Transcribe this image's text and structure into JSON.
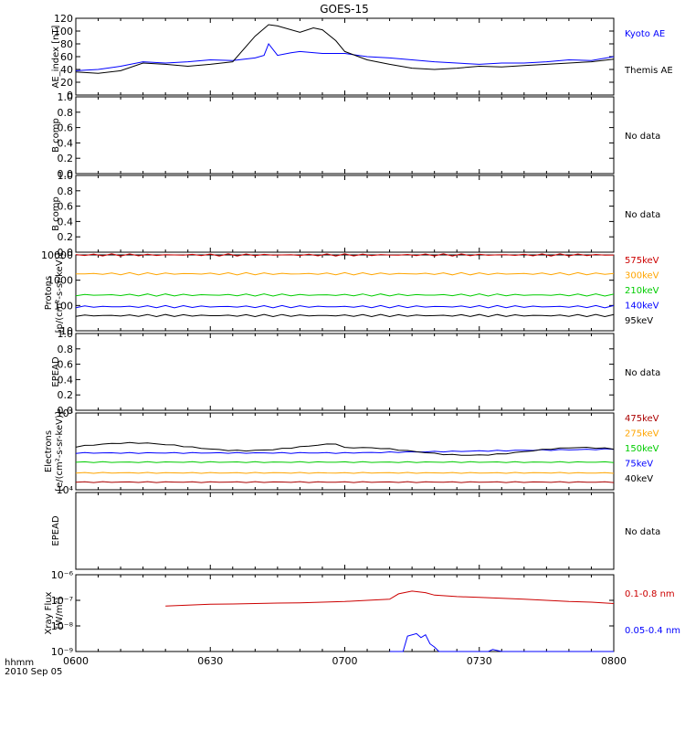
{
  "title": "GOES-15",
  "footer": {
    "time_label": "hhmm",
    "date_label": "2010 Sep 05"
  },
  "colors": {
    "black": "#000000",
    "blue": "#0000ff",
    "red": "#cc0000",
    "orange": "#ffa500",
    "green": "#00cc00",
    "darkred": "#aa0000"
  },
  "chart_data": [
    {
      "type": "line",
      "panel": "ae",
      "ylabel": "AE_index [nT]",
      "ylim": [
        0,
        120
      ],
      "yticks": [
        "0",
        "20",
        "40",
        "60",
        "80",
        "100",
        "120"
      ],
      "x_range": [
        "06:00",
        "08:00"
      ],
      "series": [
        {
          "name": "Kyoto AE",
          "color": "#0000ff",
          "x_min": [
            0,
            5,
            10,
            15,
            20,
            25,
            30,
            35,
            40,
            42,
            43,
            45,
            48,
            50,
            55,
            60,
            65,
            70,
            75,
            80,
            85,
            90,
            95,
            100,
            105,
            110,
            115,
            120
          ],
          "values": [
            38,
            40,
            45,
            52,
            50,
            52,
            55,
            54,
            58,
            62,
            80,
            62,
            66,
            68,
            65,
            65,
            60,
            58,
            55,
            52,
            50,
            48,
            50,
            50,
            52,
            55,
            54,
            60
          ]
        },
        {
          "name": "Themis AE",
          "color": "#000000",
          "x_min": [
            0,
            5,
            10,
            15,
            20,
            25,
            30,
            35,
            40,
            43,
            45,
            50,
            53,
            55,
            58,
            60,
            65,
            70,
            75,
            80,
            85,
            90,
            95,
            100,
            105,
            110,
            115,
            120
          ],
          "values": [
            36,
            34,
            38,
            50,
            48,
            45,
            48,
            52,
            92,
            110,
            108,
            98,
            105,
            102,
            85,
            68,
            55,
            48,
            42,
            40,
            42,
            45,
            44,
            46,
            48,
            50,
            52,
            56
          ]
        }
      ]
    },
    {
      "type": "line",
      "panel": "b1",
      "ylabel": "B comp",
      "ylim": [
        0,
        1
      ],
      "yticks": [
        "0.0",
        "0.2",
        "0.4",
        "0.6",
        "0.8",
        "1.0"
      ],
      "status": "No data",
      "series": []
    },
    {
      "type": "line",
      "panel": "b2",
      "ylabel": "B comp",
      "ylim": [
        0,
        1
      ],
      "yticks": [
        "0.0",
        "0.2",
        "0.4",
        "0.6",
        "0.8",
        "1.0"
      ],
      "status": "No data",
      "series": []
    },
    {
      "type": "line",
      "panel": "protons",
      "ylabel": "Protons",
      "ylabel2": "[p/(cm²-s-sr-keV)]",
      "scale": "log",
      "ylim": [
        10,
        10000
      ],
      "yticks": [
        "10",
        "100",
        "1000",
        "10000"
      ],
      "series": [
        {
          "name": "575keV",
          "color": "#cc0000",
          "level": 10000
        },
        {
          "name": "300keV",
          "color": "#ffa500",
          "level": 1800
        },
        {
          "name": "210keV",
          "color": "#00cc00",
          "level": 260
        },
        {
          "name": "140keV",
          "color": "#0000ff",
          "level": 90
        },
        {
          "name": "95keV",
          "color": "#000000",
          "level": 40
        }
      ]
    },
    {
      "type": "line",
      "panel": "epead1",
      "ylabel": "EPEAD",
      "ylim": [
        0,
        1
      ],
      "yticks": [
        "0.0",
        "0.2",
        "0.4",
        "0.6",
        "0.8",
        "1.0"
      ],
      "status": "No data",
      "series": []
    },
    {
      "type": "line",
      "panel": "electrons",
      "ylabel": "Electrons",
      "ylabel2": "[e/(cm²-s-sr-keV)]",
      "scale": "log",
      "ylim": [
        10000,
        100000
      ],
      "yticks": [
        "10⁴",
        "10⁵"
      ],
      "series": [
        {
          "name": "475keV",
          "color": "#aa0000"
        },
        {
          "name": "275keV",
          "color": "#ffa500"
        },
        {
          "name": "150keV",
          "color": "#00cc00"
        },
        {
          "name": "75keV",
          "color": "#0000ff"
        },
        {
          "name": "40keV",
          "color": "#000000"
        }
      ]
    },
    {
      "type": "line",
      "panel": "epead2",
      "ylabel": "EPEAD",
      "ylim": [
        0,
        1
      ],
      "yticks": [],
      "status": "No data",
      "series": []
    },
    {
      "type": "line",
      "panel": "xray",
      "ylabel": "Xray Flux",
      "ylabel2": "[W/m²]",
      "scale": "log",
      "ylim": [
        1e-09,
        1e-06
      ],
      "yticks": [
        "10⁻⁹",
        "10⁻⁸",
        "10⁻⁷",
        "10⁻⁶"
      ],
      "xticks": [
        "0600",
        "0630",
        "0700",
        "0730",
        "0800"
      ],
      "series": [
        {
          "name": "0.1-0.8 nm",
          "color": "#cc0000",
          "x_min": [
            20,
            25,
            30,
            35,
            40,
            45,
            50,
            55,
            60,
            65,
            70,
            72,
            75,
            78,
            80,
            85,
            90,
            95,
            100,
            105,
            110,
            115,
            120
          ],
          "values": [
            6e-08,
            6.5e-08,
            7e-08,
            7.2e-08,
            7.5e-08,
            7.8e-08,
            8e-08,
            8.5e-08,
            9e-08,
            1e-07,
            1.1e-07,
            1.8e-07,
            2.3e-07,
            2e-07,
            1.6e-07,
            1.4e-07,
            1.3e-07,
            1.2e-07,
            1.1e-07,
            1e-07,
            9e-08,
            8.5e-08,
            7.5e-08
          ]
        },
        {
          "name": "0.05-0.4 nm",
          "color": "#0000ff",
          "x_min": [
            70,
            73,
            74,
            76,
            77,
            78,
            79,
            80,
            81,
            82,
            85,
            88,
            90,
            92,
            93,
            95,
            120
          ],
          "values": [
            1e-09,
            1e-09,
            4e-09,
            5e-09,
            3.5e-09,
            4.5e-09,
            2e-09,
            1.5e-09,
            1e-09,
            1e-09,
            1e-09,
            1e-09,
            1e-09,
            1e-09,
            1.2e-09,
            1e-09,
            1e-09
          ]
        }
      ]
    }
  ]
}
